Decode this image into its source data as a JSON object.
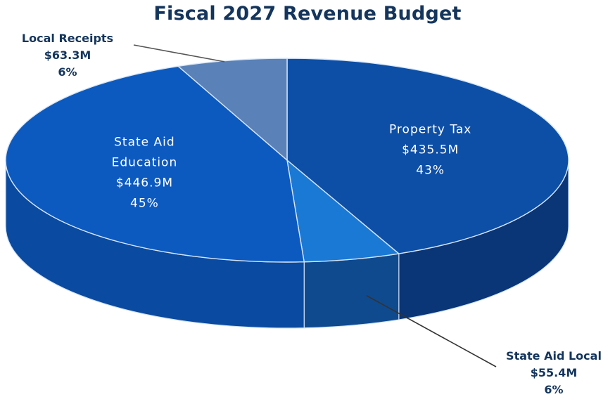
{
  "chart_data": {
    "type": "pie",
    "title": "Fiscal 2027 Revenue Budget",
    "three_d": true,
    "categories": [
      "Property Tax",
      "State Aid Local",
      "State Aid Education",
      "Local Receipts"
    ],
    "values": [
      435.5,
      55.4,
      446.9,
      63.3
    ],
    "slices": [
      {
        "name": "Property Tax",
        "amount": "$435.5M",
        "percent": "43%",
        "value": 435.5,
        "color": "#0d4fa6",
        "side_color": "#0a3576",
        "label_position": "inside"
      },
      {
        "name": "State Aid Local",
        "amount": "$55.4M",
        "percent": "6%",
        "value": 55.4,
        "color": "#1a79d4",
        "side_color": "#0f4a8f",
        "label_position": "outside-bottom-right"
      },
      {
        "name": "State Aid Education",
        "amount": "$446.9M",
        "percent": "45%",
        "value": 446.9,
        "color": "#0c5ac0",
        "side_color": "#0a4aa0",
        "label_lines": [
          "State Aid",
          "Education"
        ],
        "label_position": "inside"
      },
      {
        "name": "Local Receipts",
        "amount": "$63.3M",
        "percent": "6%",
        "value": 63.3,
        "color": "#5a81b8",
        "side_color": "#3f6aa4",
        "label_position": "outside-top-left"
      }
    ],
    "legend": "none"
  }
}
